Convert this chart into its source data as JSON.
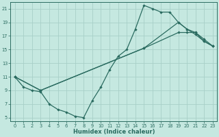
{
  "xlabel": "Humidex (Indice chaleur)",
  "bg_color": "#c5e8e0",
  "grid_color": "#a8cfc8",
  "line_color": "#2a6b60",
  "spine_color": "#2a6b60",
  "xlim": [
    -0.5,
    23.5
  ],
  "ylim": [
    4.5,
    22.0
  ],
  "yticks": [
    5,
    7,
    9,
    11,
    13,
    15,
    17,
    19,
    21
  ],
  "xticks": [
    0,
    1,
    2,
    3,
    4,
    5,
    6,
    7,
    8,
    9,
    10,
    11,
    12,
    13,
    14,
    15,
    16,
    17,
    18,
    19,
    20,
    21,
    22,
    23
  ],
  "line1_x": [
    0,
    1,
    2,
    3,
    4,
    5,
    6,
    7,
    8,
    9,
    10,
    11,
    12,
    13,
    14,
    15,
    16,
    17,
    18,
    19,
    20,
    21,
    22,
    23
  ],
  "line1_y": [
    11,
    9.5,
    9,
    8.8,
    7,
    6.2,
    5.8,
    5.2,
    5.0,
    7.5,
    9.5,
    12.0,
    14.0,
    15.0,
    18.0,
    21.5,
    21.0,
    20.5,
    20.5,
    19.0,
    18.0,
    17.2,
    16.2,
    15.5
  ],
  "line2_x": [
    0,
    3,
    15,
    19,
    20,
    21,
    22,
    23
  ],
  "line2_y": [
    11,
    9,
    15.2,
    19.0,
    18.0,
    17.5,
    16.5,
    15.5
  ],
  "line3_x": [
    0,
    3,
    15,
    19,
    20,
    21,
    22,
    23
  ],
  "line3_y": [
    11,
    9,
    15.2,
    17.5,
    17.5,
    17.5,
    16.2,
    15.5
  ],
  "xlabel_fontsize": 6.0,
  "tick_fontsize": 4.8,
  "line_width": 0.9,
  "marker_size": 2.2
}
